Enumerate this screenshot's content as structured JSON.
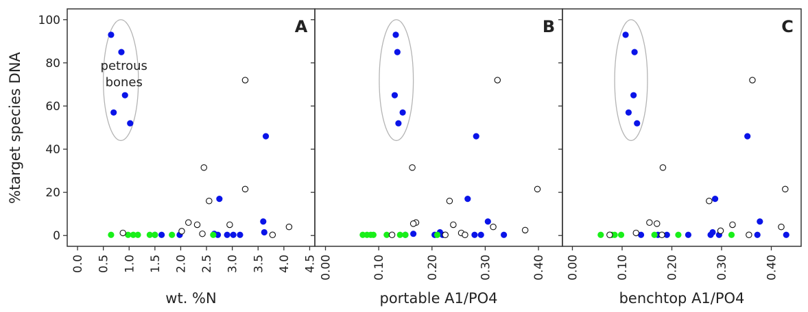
{
  "colors": {
    "blue": "#0a14e8",
    "green": "#19ef19",
    "open_fill": "#ffffff",
    "open_stroke": "#111111",
    "ellipse_stroke": "#b4b4b4",
    "axis": "#333333"
  },
  "chart_data": {
    "type": "scatter",
    "ylabel": "%target species DNA",
    "ylim": [
      -5,
      105
    ],
    "yticks": [
      {
        "value": 0,
        "label": "0"
      },
      {
        "value": 20,
        "label": "20"
      },
      {
        "value": 40,
        "label": "40"
      },
      {
        "value": 60,
        "label": "60"
      },
      {
        "value": 80,
        "label": "80"
      },
      {
        "value": 100,
        "label": "100"
      }
    ],
    "grid": false,
    "legend": "none",
    "panels": [
      {
        "id": "A",
        "letter": "A",
        "xlabel": "wt. %N",
        "xlim": [
          -0.2,
          4.6
        ],
        "xticks": [
          {
            "value": 0.0,
            "label": "0.0"
          },
          {
            "value": 0.5,
            "label": "0.5"
          },
          {
            "value": 1.0,
            "label": "1.0"
          },
          {
            "value": 1.5,
            "label": "1.5"
          },
          {
            "value": 2.0,
            "label": "2.0"
          },
          {
            "value": 2.5,
            "label": "2.5"
          },
          {
            "value": 3.0,
            "label": "3.0"
          },
          {
            "value": 3.5,
            "label": "3.5"
          },
          {
            "value": 4.0,
            "label": "4.0"
          },
          {
            "value": 4.5,
            "label": "4.5"
          }
        ],
        "ellipse": {
          "cx": 0.84,
          "cy": 72,
          "rx": 0.34,
          "ry": 28
        },
        "annotation": [
          "petrous",
          "bones"
        ],
        "series": [
          {
            "style": "blue",
            "points": [
              {
                "x": 0.65,
                "y": 93
              },
              {
                "x": 0.85,
                "y": 85
              },
              {
                "x": 0.92,
                "y": 65
              },
              {
                "x": 0.7,
                "y": 57
              },
              {
                "x": 1.02,
                "y": 52
              },
              {
                "x": 3.65,
                "y": 46
              },
              {
                "x": 2.75,
                "y": 17
              },
              {
                "x": 3.6,
                "y": 6.5
              },
              {
                "x": 3.62,
                "y": 1.5
              },
              {
                "x": 1.5,
                "y": 0.3
              },
              {
                "x": 1.63,
                "y": 0.3
              },
              {
                "x": 1.98,
                "y": 0.3
              },
              {
                "x": 2.65,
                "y": 0.8
              },
              {
                "x": 2.72,
                "y": 0.3
              },
              {
                "x": 2.9,
                "y": 0.3
              },
              {
                "x": 3.02,
                "y": 0.3
              },
              {
                "x": 3.15,
                "y": 0.3
              }
            ]
          },
          {
            "style": "green",
            "points": [
              {
                "x": 0.65,
                "y": 0.3
              },
              {
                "x": 0.98,
                "y": 0.3
              },
              {
                "x": 1.08,
                "y": 0.3
              },
              {
                "x": 1.17,
                "y": 0.3
              },
              {
                "x": 1.4,
                "y": 0.3
              },
              {
                "x": 1.5,
                "y": 0.3
              },
              {
                "x": 1.83,
                "y": 0.3
              },
              {
                "x": 2.63,
                "y": 0.3
              }
            ]
          },
          {
            "style": "open",
            "points": [
              {
                "x": 3.25,
                "y": 72
              },
              {
                "x": 2.45,
                "y": 31.5
              },
              {
                "x": 3.25,
                "y": 21.5
              },
              {
                "x": 2.55,
                "y": 16
              },
              {
                "x": 2.15,
                "y": 6
              },
              {
                "x": 2.32,
                "y": 5
              },
              {
                "x": 2.95,
                "y": 5
              },
              {
                "x": 4.1,
                "y": 4
              },
              {
                "x": 2.02,
                "y": 2
              },
              {
                "x": 0.88,
                "y": 1.2
              },
              {
                "x": 2.42,
                "y": 0.8
              },
              {
                "x": 3.78,
                "y": 0.3
              }
            ]
          }
        ]
      },
      {
        "id": "B",
        "letter": "B",
        "xlabel": "portable A1/PO4",
        "xlim": [
          -0.02,
          0.445
        ],
        "xticks": [
          {
            "value": 0.0,
            "label": "0.00"
          },
          {
            "value": 0.1,
            "label": "0.10"
          },
          {
            "value": 0.2,
            "label": "0.20"
          },
          {
            "value": 0.3,
            "label": "0.30"
          },
          {
            "value": 0.4,
            "label": "0.40"
          }
        ],
        "ellipse": {
          "cx": 0.133,
          "cy": 72,
          "rx": 0.032,
          "ry": 28
        },
        "annotation": [],
        "series": [
          {
            "style": "blue",
            "points": [
              {
                "x": 0.132,
                "y": 93
              },
              {
                "x": 0.135,
                "y": 85
              },
              {
                "x": 0.13,
                "y": 65
              },
              {
                "x": 0.145,
                "y": 57
              },
              {
                "x": 0.137,
                "y": 52
              },
              {
                "x": 0.283,
                "y": 46
              },
              {
                "x": 0.267,
                "y": 17
              },
              {
                "x": 0.305,
                "y": 6.5
              },
              {
                "x": 0.215,
                "y": 1.5
              },
              {
                "x": 0.15,
                "y": 0.3
              },
              {
                "x": 0.165,
                "y": 0.8
              },
              {
                "x": 0.205,
                "y": 0.3
              },
              {
                "x": 0.22,
                "y": 0.3
              },
              {
                "x": 0.28,
                "y": 0.3
              },
              {
                "x": 0.292,
                "y": 0.3
              },
              {
                "x": 0.335,
                "y": 0.3
              }
            ]
          },
          {
            "style": "green",
            "points": [
              {
                "x": 0.07,
                "y": 0.3
              },
              {
                "x": 0.078,
                "y": 0.3
              },
              {
                "x": 0.085,
                "y": 0.3
              },
              {
                "x": 0.09,
                "y": 0.3
              },
              {
                "x": 0.115,
                "y": 0.3
              },
              {
                "x": 0.14,
                "y": 0.3
              },
              {
                "x": 0.15,
                "y": 0.3
              },
              {
                "x": 0.21,
                "y": 0.3
              }
            ]
          },
          {
            "style": "open",
            "points": [
              {
                "x": 0.323,
                "y": 72
              },
              {
                "x": 0.163,
                "y": 31.5
              },
              {
                "x": 0.398,
                "y": 21.5
              },
              {
                "x": 0.233,
                "y": 16
              },
              {
                "x": 0.17,
                "y": 6
              },
              {
                "x": 0.165,
                "y": 5.5
              },
              {
                "x": 0.24,
                "y": 5
              },
              {
                "x": 0.315,
                "y": 4
              },
              {
                "x": 0.375,
                "y": 2.5
              },
              {
                "x": 0.255,
                "y": 1.2
              },
              {
                "x": 0.125,
                "y": 0.3
              },
              {
                "x": 0.225,
                "y": 0.3
              },
              {
                "x": 0.262,
                "y": 0.3
              }
            ]
          }
        ]
      },
      {
        "id": "C",
        "letter": "C",
        "xlabel": "benchtop A1/PO4",
        "xlim": [
          -0.02,
          0.46
        ],
        "xticks": [
          {
            "value": 0.0,
            "label": "0.00"
          },
          {
            "value": 0.1,
            "label": "0.10"
          },
          {
            "value": 0.2,
            "label": "0.20"
          },
          {
            "value": 0.3,
            "label": "0.30"
          },
          {
            "value": 0.4,
            "label": "0.40"
          }
        ],
        "ellipse": {
          "cx": 0.118,
          "cy": 72,
          "rx": 0.033,
          "ry": 28
        },
        "annotation": [],
        "series": [
          {
            "style": "blue",
            "points": [
              {
                "x": 0.107,
                "y": 93
              },
              {
                "x": 0.125,
                "y": 85
              },
              {
                "x": 0.123,
                "y": 65
              },
              {
                "x": 0.113,
                "y": 57
              },
              {
                "x": 0.13,
                "y": 52
              },
              {
                "x": 0.352,
                "y": 46
              },
              {
                "x": 0.287,
                "y": 17
              },
              {
                "x": 0.377,
                "y": 6.5
              },
              {
                "x": 0.282,
                "y": 1.5
              },
              {
                "x": 0.138,
                "y": 0.3
              },
              {
                "x": 0.172,
                "y": 0.3
              },
              {
                "x": 0.19,
                "y": 0.3
              },
              {
                "x": 0.233,
                "y": 0.3
              },
              {
                "x": 0.278,
                "y": 0.3
              },
              {
                "x": 0.295,
                "y": 0.3
              },
              {
                "x": 0.372,
                "y": 0.3
              },
              {
                "x": 0.43,
                "y": 0.3
              }
            ]
          },
          {
            "style": "green",
            "points": [
              {
                "x": 0.057,
                "y": 0.3
              },
              {
                "x": 0.08,
                "y": 0.3
              },
              {
                "x": 0.085,
                "y": 0.3
              },
              {
                "x": 0.098,
                "y": 0.3
              },
              {
                "x": 0.165,
                "y": 0.3
              },
              {
                "x": 0.213,
                "y": 0.3
              },
              {
                "x": 0.32,
                "y": 0.3
              }
            ]
          },
          {
            "style": "open",
            "points": [
              {
                "x": 0.362,
                "y": 72
              },
              {
                "x": 0.182,
                "y": 31.5
              },
              {
                "x": 0.428,
                "y": 21.5
              },
              {
                "x": 0.275,
                "y": 16
              },
              {
                "x": 0.155,
                "y": 6
              },
              {
                "x": 0.17,
                "y": 5.5
              },
              {
                "x": 0.322,
                "y": 5
              },
              {
                "x": 0.42,
                "y": 4
              },
              {
                "x": 0.298,
                "y": 2.2
              },
              {
                "x": 0.128,
                "y": 1.2
              },
              {
                "x": 0.075,
                "y": 0.3
              },
              {
                "x": 0.18,
                "y": 0.3
              },
              {
                "x": 0.355,
                "y": 0.3
              }
            ]
          }
        ]
      }
    ]
  }
}
